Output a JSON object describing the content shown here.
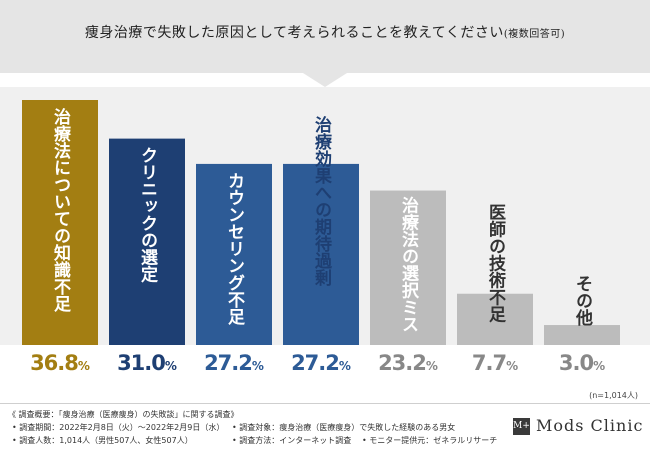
{
  "header": {
    "title": "痩身治療で失敗した原因として考えられることを教えてください",
    "title_note": "(複数回答可)"
  },
  "chart_data": {
    "type": "bar",
    "categories": [
      "治療法についての知識不足",
      "クリニックの選定",
      "カウンセリング不足",
      "治療効果への期待過剰",
      "治療法の選択ミス",
      "医師の技術不足",
      "その他"
    ],
    "values": [
      36.8,
      31.0,
      27.2,
      27.2,
      23.2,
      7.7,
      3.0
    ],
    "value_labels": [
      "36.8",
      "31.0",
      "27.2",
      "27.2",
      "23.2",
      "7.7",
      "3.0"
    ],
    "unit": "%",
    "bar_colors": [
      "#a37e12",
      "#1e3f73",
      "#2d5b96",
      "#2d5b96",
      "#bcbcbc",
      "#bcbcbc",
      "#bcbcbc"
    ],
    "label_colors": [
      "#ffffff",
      "#ffffff",
      "#ffffff",
      "#1e3f73",
      "#ffffff",
      "#333333",
      "#333333"
    ],
    "value_colors": [
      "#a37e12",
      "#1e3f73",
      "#2d5b96",
      "#2d5b96",
      "#888888",
      "#888888",
      "#888888"
    ],
    "ylim": [
      0,
      40
    ],
    "sample_note": "(n=1,014人)"
  },
  "footer": {
    "survey_title": "《 調査概要：「痩身治療（医療痩身）の失敗談」に関する調査》",
    "period": "• 調査期間：2022年2月8日（火）〜2022年2月9日（水）",
    "target": "• 調査対象：痩身治療（医療痩身）で失敗した経験のある男女",
    "respondents": "• 調査人数：1,014人（男性507人、女性507人）",
    "method": "• 調査方法：インターネット調査",
    "provider": "• モニター提供元：ゼネラルリサーチ",
    "logo_mark": "M+",
    "logo_text": "Mods Clinic"
  }
}
